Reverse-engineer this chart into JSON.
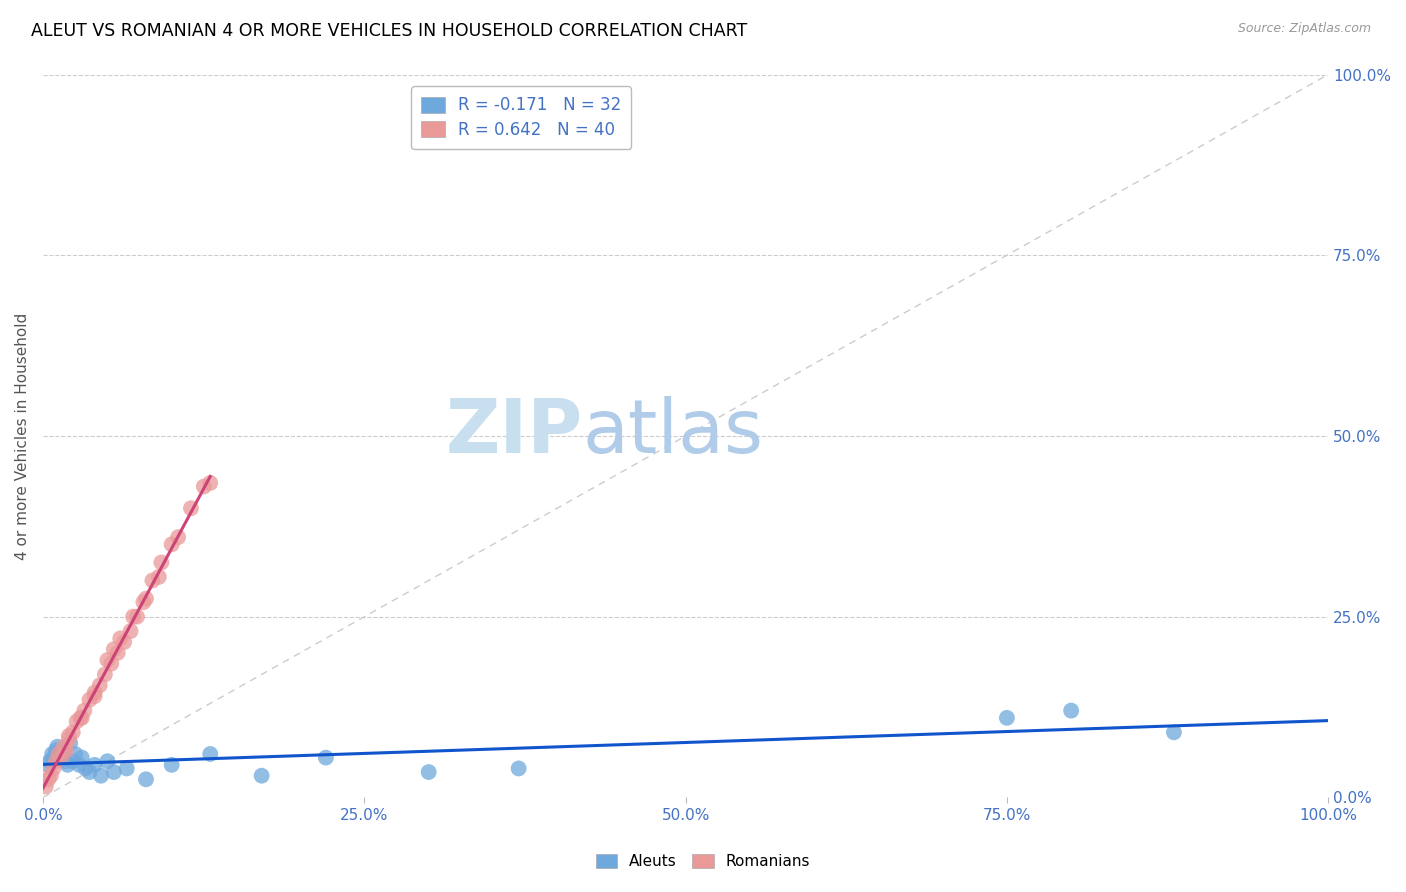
{
  "title": "ALEUT VS ROMANIAN 4 OR MORE VEHICLES IN HOUSEHOLD CORRELATION CHART",
  "source": "Source: ZipAtlas.com",
  "ylabel": "4 or more Vehicles in Household",
  "xlim": [
    0,
    100
  ],
  "ylim": [
    0,
    100
  ],
  "xticks": [
    0,
    25,
    50,
    75,
    100
  ],
  "yticks": [
    0,
    25,
    50,
    75,
    100
  ],
  "xtick_labels": [
    "0.0%",
    "25.0%",
    "50.0%",
    "75.0%",
    "100.0%"
  ],
  "right_ytick_labels": [
    "0.0%",
    "25.0%",
    "50.0%",
    "75.0%",
    "100.0%"
  ],
  "aleuts_color": "#6fa8dc",
  "romanians_color": "#ea9999",
  "aleuts_line_color": "#1155cc",
  "romanians_line_color": "#cc4477",
  "reference_line_color": "#cccccc",
  "legend_aleuts_label": "Aleuts",
  "legend_romanians_label": "Romanians",
  "R_aleuts": -0.171,
  "N_aleuts": 32,
  "R_romanians": 0.642,
  "N_romanians": 40,
  "watermark_zip": "ZIP",
  "watermark_atlas": "atlas",
  "watermark_color_zip": "#c8dff0",
  "watermark_color_atlas": "#b0cce8",
  "background_color": "#ffffff",
  "grid_color": "#cccccc",
  "title_color": "#000000",
  "source_color": "#999999",
  "right_label_color": "#4472c4",
  "bottom_label_color": "#4472c4",
  "aleuts_x": [
    0.3,
    0.5,
    0.7,
    0.8,
    1.0,
    1.1,
    1.3,
    1.5,
    1.7,
    1.9,
    2.1,
    2.3,
    2.5,
    2.8,
    3.0,
    3.3,
    3.6,
    4.0,
    4.5,
    5.0,
    5.5,
    6.5,
    8.0,
    10.0,
    13.0,
    17.0,
    22.0,
    30.0,
    37.0,
    75.0,
    80.0,
    88.0
  ],
  "aleuts_y": [
    4.5,
    5.0,
    6.0,
    5.5,
    6.5,
    7.0,
    5.5,
    6.0,
    5.0,
    4.5,
    7.5,
    5.0,
    6.0,
    4.5,
    5.5,
    4.0,
    3.5,
    4.5,
    3.0,
    5.0,
    3.5,
    4.0,
    2.5,
    4.5,
    6.0,
    3.0,
    5.5,
    3.5,
    4.0,
    11.0,
    12.0,
    9.0
  ],
  "romanians_x": [
    0.2,
    0.4,
    0.6,
    0.8,
    1.0,
    1.2,
    1.4,
    1.6,
    1.8,
    2.0,
    2.3,
    2.6,
    2.9,
    3.2,
    3.6,
    4.0,
    4.4,
    4.8,
    5.3,
    5.8,
    6.3,
    6.8,
    7.3,
    7.8,
    8.5,
    9.2,
    10.0,
    11.5,
    13.0,
    5.0,
    2.0,
    3.0,
    4.0,
    5.5,
    6.0,
    7.0,
    8.0,
    9.0,
    10.5,
    12.5
  ],
  "romanians_y": [
    1.5,
    2.5,
    3.0,
    4.0,
    5.0,
    6.0,
    5.5,
    7.0,
    6.5,
    8.0,
    9.0,
    10.5,
    11.0,
    12.0,
    13.5,
    14.5,
    15.5,
    17.0,
    18.5,
    20.0,
    21.5,
    23.0,
    25.0,
    27.0,
    30.0,
    32.5,
    35.0,
    40.0,
    43.5,
    19.0,
    8.5,
    11.0,
    14.0,
    20.5,
    22.0,
    25.0,
    27.5,
    30.5,
    36.0,
    43.0
  ]
}
